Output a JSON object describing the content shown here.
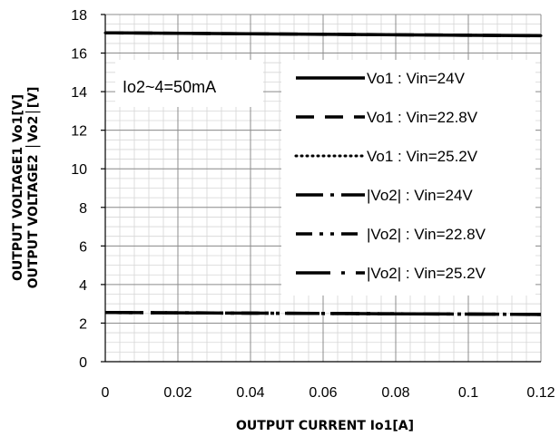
{
  "chart_data": {
    "type": "line",
    "xlabel": "OUTPUT CURRENT Io1[A]",
    "ylabel_line1": "OUTPUT VOLTAGE1 Vo1[V]",
    "ylabel_line2": "OUTPUT VOLTAGE2 │Vo2│[V]",
    "xlim": [
      0,
      0.12
    ],
    "ylim": [
      0,
      18
    ],
    "x_ticks": [
      0,
      0.02,
      0.04,
      0.06,
      0.08,
      0.1,
      0.12
    ],
    "x_tick_labels": [
      "0",
      "0.02",
      "0.04",
      "0.06",
      "0.08",
      "0.1",
      "0.12"
    ],
    "y_ticks": [
      0,
      2,
      4,
      6,
      8,
      10,
      12,
      14,
      16,
      18
    ],
    "y_tick_labels": [
      "0",
      "2",
      "4",
      "6",
      "8",
      "10",
      "12",
      "14",
      "16",
      "18"
    ],
    "grid": true,
    "legend_position": "right",
    "annotation": "Io2~4=50mA",
    "x": [
      0,
      0.12
    ],
    "series": [
      {
        "name": "Vo1 : Vin=24V",
        "values": [
          17.05,
          16.9
        ],
        "style": "solid"
      },
      {
        "name": "Vo1 : Vin=22.8V",
        "values": [
          17.05,
          16.9
        ],
        "style": "dashed"
      },
      {
        "name": "Vo1 : Vin=25.2V",
        "values": [
          17.05,
          16.9
        ],
        "style": "dotted"
      },
      {
        "name": "|Vo2| : Vin=24V",
        "values": [
          2.55,
          2.45
        ],
        "style": "long-dash-dot"
      },
      {
        "name": "|Vo2| : Vin=22.8V",
        "values": [
          2.55,
          2.45
        ],
        "style": "dash-dot-dot"
      },
      {
        "name": "|Vo2| : Vin=25.2V",
        "values": [
          2.55,
          2.45
        ],
        "style": "long-dash-dot-sparse"
      }
    ]
  }
}
